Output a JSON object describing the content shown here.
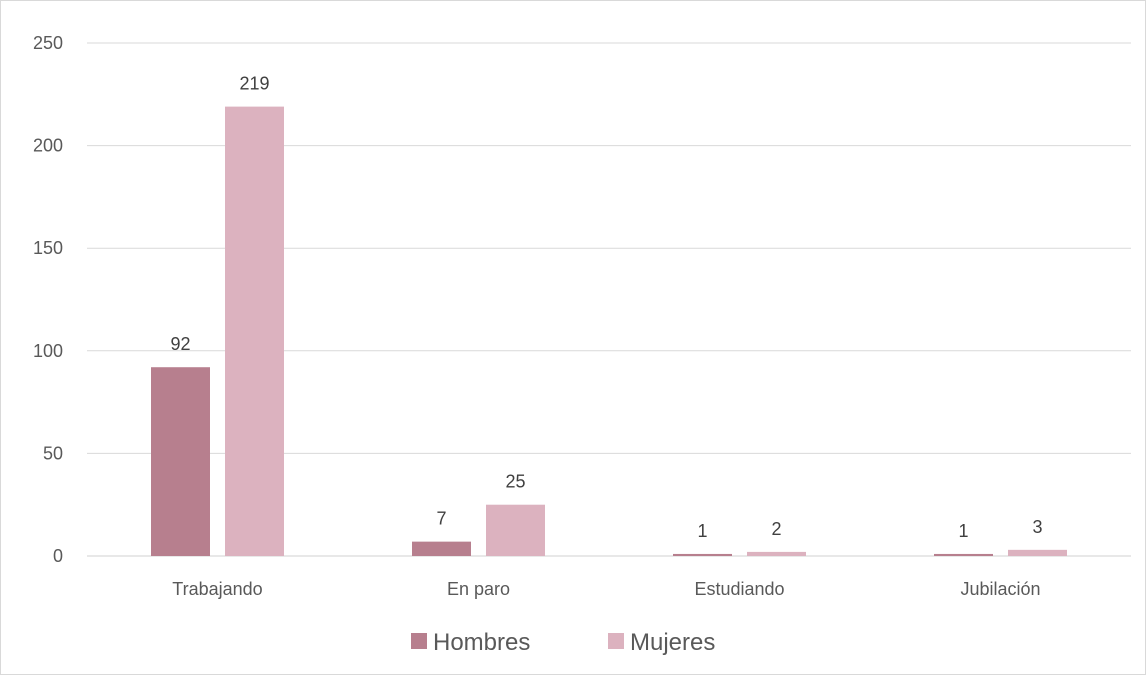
{
  "chart_data": {
    "type": "bar",
    "title": "",
    "xlabel": "",
    "ylabel": "",
    "categories": [
      "Trabajando",
      "En paro",
      "Estudiando",
      "Jubilación"
    ],
    "series": [
      {
        "name": "Hombres",
        "values": [
          92,
          7,
          1,
          1
        ],
        "color": "#b77f8e"
      },
      {
        "name": "Mujeres",
        "values": [
          219,
          25,
          2,
          3
        ],
        "color": "#dcb2bf"
      }
    ],
    "ylim": [
      0,
      250
    ],
    "yticks": [
      "0",
      "50",
      "100",
      "150",
      "200",
      "250"
    ],
    "grid": true,
    "legend": "bottom",
    "data_labels": true
  }
}
